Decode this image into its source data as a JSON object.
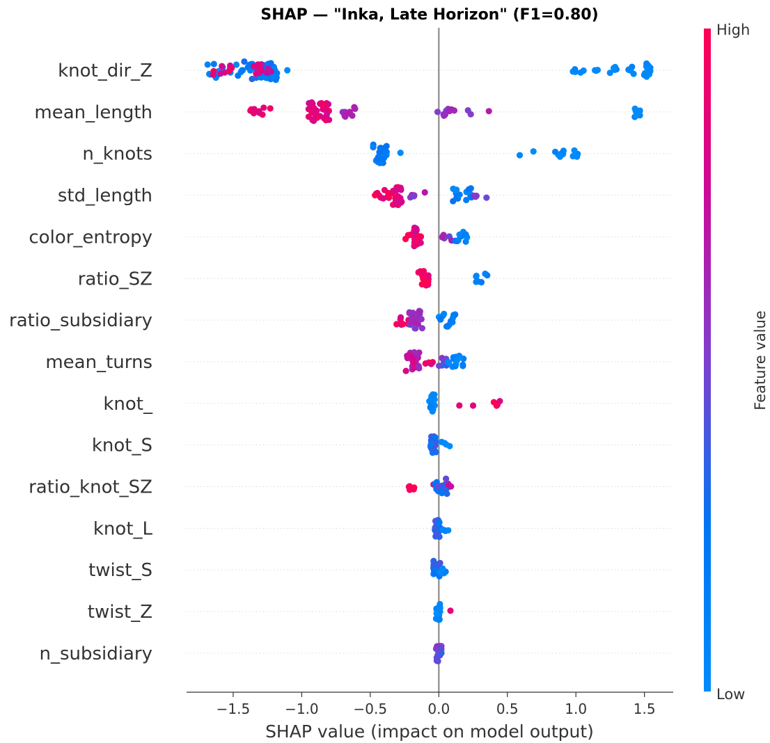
{
  "chart_data": {
    "type": "scatter",
    "subtype": "shap-beeswarm",
    "title": "SHAP — \"Inka, Late Horizon\" (F1=0.80)",
    "xlabel": "SHAP value (impact on model output)",
    "ylabel": "",
    "xlim": [
      -1.84,
      1.71
    ],
    "x_ticks": [
      -1.5,
      -1.0,
      -0.5,
      0.0,
      0.5,
      1.0,
      1.5
    ],
    "x_tick_labels": [
      "−1.5",
      "−1.0",
      "−0.5",
      "0.0",
      "0.5",
      "1.0",
      "1.5"
    ],
    "grid": false,
    "colorbar": {
      "label": "Feature value",
      "high_label": "High",
      "low_label": "Low",
      "high_color": "#ff0052",
      "low_color": "#008bfb"
    },
    "features": [
      {
        "name": "knot_dir_Z",
        "clusters": [
          {
            "x": [
              -1.7,
              -1.42
            ],
            "v": 0.1,
            "n": 18
          },
          {
            "x": [
              -1.66,
              -1.5
            ],
            "v": 0.85,
            "n": 8
          },
          {
            "x": [
              -1.42,
              -1.18
            ],
            "v": 0.2,
            "n": 40
          },
          {
            "x": [
              -1.35,
              -1.2
            ],
            "v": 0.8,
            "n": 14
          },
          {
            "x": [
              -1.12,
              -1.09
            ],
            "v": 0.0,
            "n": 1
          },
          {
            "x": [
              0.97,
              1.06
            ],
            "v": 0.0,
            "n": 5
          },
          {
            "x": [
              1.12,
              1.3
            ],
            "v": 0.0,
            "n": 8
          },
          {
            "x": [
              1.36,
              1.47
            ],
            "v": 0.0,
            "n": 5
          },
          {
            "x": [
              1.49,
              1.55
            ],
            "v": 0.0,
            "n": 16
          }
        ]
      },
      {
        "name": "mean_length",
        "clusters": [
          {
            "x": [
              -1.41,
              -1.35
            ],
            "v": 0.95,
            "n": 3
          },
          {
            "x": [
              -1.35,
              -1.22
            ],
            "v": 0.9,
            "n": 7
          },
          {
            "x": [
              -0.95,
              -0.8
            ],
            "v": 0.85,
            "n": 40
          },
          {
            "x": [
              -0.71,
              -0.6
            ],
            "v": 0.6,
            "n": 10
          },
          {
            "x": [
              -0.01,
              0.12
            ],
            "v": 0.6,
            "n": 9
          },
          {
            "x": [
              0.2,
              0.25
            ],
            "v": 0.6,
            "n": 2
          },
          {
            "x": [
              0.34,
              0.39
            ],
            "v": 0.6,
            "n": 1
          },
          {
            "x": [
              1.42,
              1.47
            ],
            "v": 0.0,
            "n": 10
          }
        ]
      },
      {
        "name": "n_knots",
        "clusters": [
          {
            "x": [
              -0.48,
              -0.38
            ],
            "v": 0.2,
            "n": 34
          },
          {
            "x": [
              -0.3,
              -0.26
            ],
            "v": 0.05,
            "n": 1
          },
          {
            "x": [
              0.57,
              0.61
            ],
            "v": 0.0,
            "n": 1
          },
          {
            "x": [
              0.67,
              0.71
            ],
            "v": 0.0,
            "n": 1
          },
          {
            "x": [
              0.84,
              0.92
            ],
            "v": 0.0,
            "n": 6
          },
          {
            "x": [
              0.96,
              1.03
            ],
            "v": 0.0,
            "n": 4
          }
        ]
      },
      {
        "name": "std_length",
        "clusters": [
          {
            "x": [
              -0.47,
              -0.36
            ],
            "v": 0.9,
            "n": 10
          },
          {
            "x": [
              -0.34,
              -0.27
            ],
            "v": 0.85,
            "n": 25
          },
          {
            "x": [
              -0.21,
              -0.1
            ],
            "v": 0.6,
            "n": 5
          },
          {
            "x": [
              0.1,
              0.25
            ],
            "v": 0.15,
            "n": 16
          },
          {
            "x": [
              0.25,
              0.36
            ],
            "v": 0.55,
            "n": 4
          }
        ]
      },
      {
        "name": "color_entropy",
        "clusters": [
          {
            "x": [
              -0.26,
              -0.2
            ],
            "v": 0.9,
            "n": 5
          },
          {
            "x": [
              -0.18,
              -0.13
            ],
            "v": 0.85,
            "n": 24
          },
          {
            "x": [
              0.02,
              0.1
            ],
            "v": 0.55,
            "n": 5
          },
          {
            "x": [
              0.1,
              0.21
            ],
            "v": 0.1,
            "n": 10
          }
        ]
      },
      {
        "name": "ratio_SZ",
        "clusters": [
          {
            "x": [
              -0.16,
              -0.07
            ],
            "v": 0.95,
            "n": 18
          },
          {
            "x": [
              0.27,
              0.36
            ],
            "v": 0.1,
            "n": 9
          }
        ]
      },
      {
        "name": "ratio_subsidiary",
        "clusters": [
          {
            "x": [
              -0.31,
              -0.22
            ],
            "v": 0.9,
            "n": 8
          },
          {
            "x": [
              -0.22,
              -0.12
            ],
            "v": 0.55,
            "n": 24
          },
          {
            "x": [
              0.0,
              0.12
            ],
            "v": 0.1,
            "n": 14
          }
        ]
      },
      {
        "name": "mean_turns",
        "clusters": [
          {
            "x": [
              -0.24,
              -0.14
            ],
            "v": 0.7,
            "n": 28
          },
          {
            "x": [
              -0.1,
              -0.04
            ],
            "v": 0.9,
            "n": 4
          },
          {
            "x": [
              0.0,
              0.06
            ],
            "v": 0.45,
            "n": 8
          },
          {
            "x": [
              0.06,
              0.18
            ],
            "v": 0.1,
            "n": 14
          }
        ]
      },
      {
        "name": "knot_",
        "clusters": [
          {
            "x": [
              -0.07,
              -0.03
            ],
            "v": 0.05,
            "n": 22
          },
          {
            "x": [
              0.13,
              0.17
            ],
            "v": 0.95,
            "n": 1
          },
          {
            "x": [
              0.23,
              0.27
            ],
            "v": 0.95,
            "n": 1
          },
          {
            "x": [
              0.39,
              0.46
            ],
            "v": 0.95,
            "n": 6
          }
        ]
      },
      {
        "name": "knot_S",
        "clusters": [
          {
            "x": [
              -0.06,
              -0.02
            ],
            "v": 0.3,
            "n": 22
          },
          {
            "x": [
              0.0,
              0.08
            ],
            "v": 0.05,
            "n": 4
          }
        ]
      },
      {
        "name": "ratio_knot_SZ",
        "clusters": [
          {
            "x": [
              -0.22,
              -0.17
            ],
            "v": 0.95,
            "n": 6
          },
          {
            "x": [
              -0.04,
              0.0
            ],
            "v": 0.9,
            "n": 3
          },
          {
            "x": [
              -0.03,
              0.07
            ],
            "v": 0.35,
            "n": 20
          },
          {
            "x": [
              0.07,
              0.12
            ],
            "v": 0.75,
            "n": 2
          }
        ]
      },
      {
        "name": "knot_L",
        "clusters": [
          {
            "x": [
              -0.03,
              0.01
            ],
            "v": 0.3,
            "n": 24
          },
          {
            "x": [
              0.01,
              0.07
            ],
            "v": 0.05,
            "n": 4
          }
        ]
      },
      {
        "name": "twist_S",
        "clusters": [
          {
            "x": [
              -0.04,
              0.01
            ],
            "v": 0.3,
            "n": 22
          },
          {
            "x": [
              0.01,
              0.05
            ],
            "v": 0.05,
            "n": 4
          }
        ]
      },
      {
        "name": "twist_Z",
        "clusters": [
          {
            "x": [
              -0.02,
              0.01
            ],
            "v": 0.05,
            "n": 20
          },
          {
            "x": [
              0.07,
              0.1
            ],
            "v": 0.95,
            "n": 1
          }
        ]
      },
      {
        "name": "n_subsidiary",
        "clusters": [
          {
            "x": [
              -0.02,
              0.02
            ],
            "v": 0.45,
            "n": 20
          }
        ]
      }
    ]
  }
}
